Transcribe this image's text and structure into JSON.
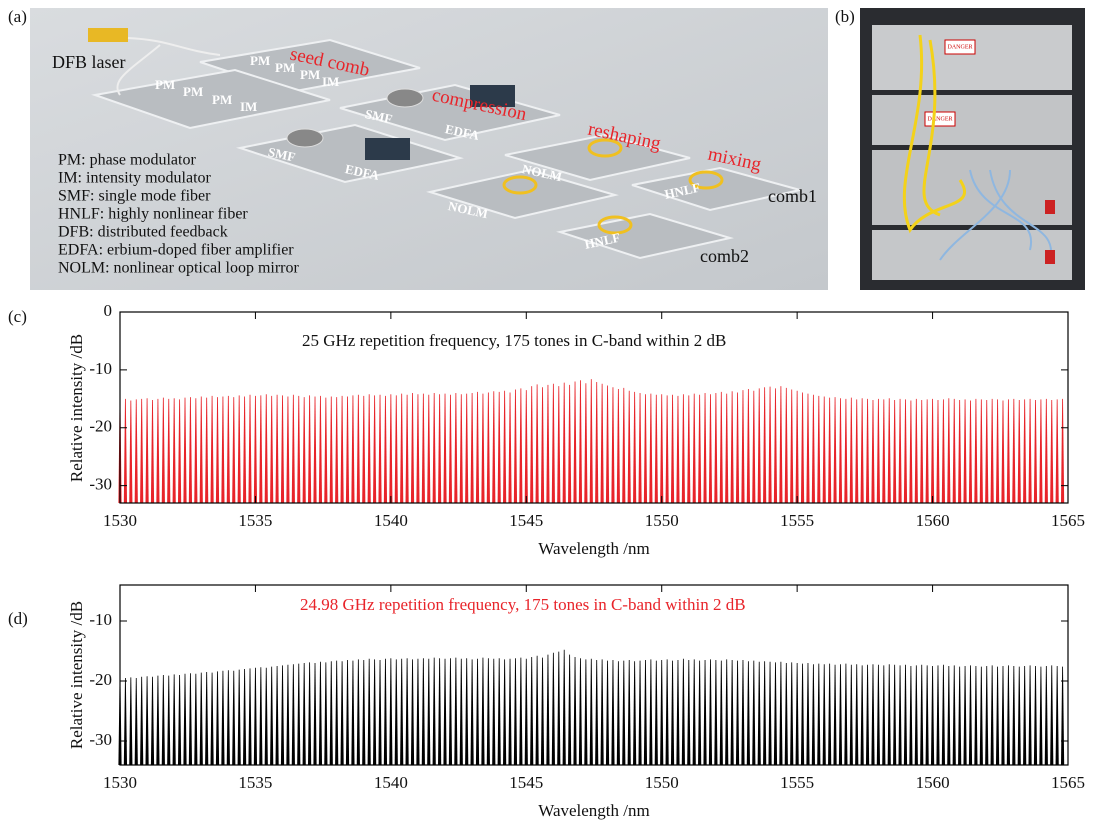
{
  "panel_labels": [
    "(a)",
    "(b)",
    "(c)",
    "(d)"
  ],
  "diagram": {
    "laser": "DFB laser",
    "stages": [
      "seed comb",
      "compression",
      "reshaping",
      "mixing"
    ],
    "modulators_1": [
      "PM",
      "PM",
      "PM",
      "IM"
    ],
    "modulators_2": [
      "PM",
      "PM",
      "PM",
      "IM"
    ],
    "components": [
      "SMF",
      "EDFA",
      "SMF",
      "EDFA",
      "NOLM",
      "NOLM",
      "HNLF",
      "HNLF"
    ],
    "outputs": [
      "comb1",
      "comb2"
    ],
    "legend": [
      "PM: phase modulator",
      "IM: intensity modulator",
      "SMF: single mode fiber",
      "HNLF: highly nonlinear fiber",
      "DFB: distributed feedback",
      "EDFA: erbium-doped fiber amplifier",
      "NOLM: nonlinear optical loop mirror"
    ]
  },
  "photo": {
    "labels": [
      "DANGER",
      "DANGER"
    ]
  },
  "chart_data": [
    {
      "type": "stem",
      "annotation": "25 GHz repetition frequency, 175 tones in C-band within 2 dB",
      "xlabel": "Wavelength /nm",
      "ylabel": "Relative intensity /dB",
      "color": "#e8242a",
      "xlim": [
        1530,
        1565
      ],
      "xticks": [
        1530,
        1535,
        1540,
        1545,
        1550,
        1555,
        1560,
        1565
      ],
      "ylim": [
        -33,
        0
      ],
      "yticks": [
        -30,
        -20,
        -10,
        0
      ],
      "x": [
        1530,
        1530.2,
        1530.4,
        1530.6,
        1530.8,
        1531,
        1531.2,
        1531.4,
        1531.6,
        1531.8,
        1532,
        1532.2,
        1532.4,
        1532.6,
        1532.8,
        1533,
        1533.2,
        1533.4,
        1533.6,
        1533.8,
        1534,
        1534.2,
        1534.4,
        1534.6,
        1534.8,
        1535,
        1535.2,
        1535.4,
        1535.6,
        1535.8,
        1536,
        1536.2,
        1536.4,
        1536.6,
        1536.8,
        1537,
        1537.2,
        1537.4,
        1537.6,
        1537.8,
        1538,
        1538.2,
        1538.4,
        1538.6,
        1538.8,
        1539,
        1539.2,
        1539.4,
        1539.6,
        1539.8,
        1540,
        1540.2,
        1540.4,
        1540.6,
        1540.8,
        1541,
        1541.2,
        1541.4,
        1541.6,
        1541.8,
        1542,
        1542.2,
        1542.4,
        1542.6,
        1542.8,
        1543,
        1543.2,
        1543.4,
        1543.6,
        1543.8,
        1544,
        1544.2,
        1544.4,
        1544.6,
        1544.8,
        1545,
        1545.2,
        1545.4,
        1545.6,
        1545.8,
        1546,
        1546.2,
        1546.4,
        1546.6,
        1546.8,
        1547,
        1547.2,
        1547.4,
        1547.6,
        1547.8,
        1548,
        1548.2,
        1548.4,
        1548.6,
        1548.8,
        1549,
        1549.2,
        1549.4,
        1549.6,
        1549.8,
        1550,
        1550.2,
        1550.4,
        1550.6,
        1550.8,
        1551,
        1551.2,
        1551.4,
        1551.6,
        1551.8,
        1552,
        1552.2,
        1552.4,
        1552.6,
        1552.8,
        1553,
        1553.2,
        1553.4,
        1553.6,
        1553.8,
        1554,
        1554.2,
        1554.4,
        1554.6,
        1554.8,
        1555,
        1555.2,
        1555.4,
        1555.6,
        1555.8,
        1556,
        1556.2,
        1556.4,
        1556.6,
        1556.8,
        1557,
        1557.2,
        1557.4,
        1557.6,
        1557.8,
        1558,
        1558.2,
        1558.4,
        1558.6,
        1558.8,
        1559,
        1559.2,
        1559.4,
        1559.6,
        1559.8,
        1560,
        1560.2,
        1560.4,
        1560.6,
        1560.8,
        1561,
        1561.2,
        1561.4,
        1561.6,
        1561.8,
        1562,
        1562.2,
        1562.4,
        1562.6,
        1562.8,
        1563,
        1563.2,
        1563.4,
        1563.6,
        1563.8,
        1564,
        1564.2,
        1564.4,
        1564.6,
        1564.8
      ],
      "values": [
        -15.2,
        -15.0,
        -15.3,
        -15.1,
        -15.0,
        -14.9,
        -15.2,
        -15.0,
        -14.8,
        -15.0,
        -14.9,
        -15.1,
        -14.8,
        -14.7,
        -14.9,
        -14.6,
        -14.8,
        -14.5,
        -14.7,
        -14.6,
        -14.5,
        -14.7,
        -14.4,
        -14.6,
        -14.3,
        -14.5,
        -14.4,
        -14.2,
        -14.5,
        -14.3,
        -14.4,
        -14.6,
        -14.3,
        -14.5,
        -14.7,
        -14.4,
        -14.6,
        -14.5,
        -14.8,
        -14.6,
        -14.7,
        -14.5,
        -14.6,
        -14.4,
        -14.3,
        -14.5,
        -14.2,
        -14.4,
        -14.3,
        -14.5,
        -14.2,
        -14.4,
        -14.1,
        -14.3,
        -14.0,
        -14.2,
        -14.1,
        -14.3,
        -14.0,
        -14.2,
        -14.1,
        -14.3,
        -14.0,
        -14.2,
        -14.1,
        -14.0,
        -13.8,
        -14.1,
        -13.9,
        -13.7,
        -13.8,
        -13.6,
        -13.9,
        -13.4,
        -13.2,
        -13.5,
        -12.8,
        -12.5,
        -13.0,
        -12.6,
        -12.4,
        -12.8,
        -12.2,
        -12.6,
        -12.0,
        -11.8,
        -12.3,
        -11.6,
        -12.1,
        -12.4,
        -12.7,
        -13.0,
        -13.3,
        -13.1,
        -13.6,
        -13.8,
        -14.0,
        -14.2,
        -14.1,
        -14.3,
        -14.2,
        -14.4,
        -14.3,
        -14.5,
        -14.2,
        -14.4,
        -14.1,
        -14.3,
        -14.0,
        -14.2,
        -14.0,
        -13.8,
        -14.1,
        -13.7,
        -13.9,
        -13.5,
        -13.3,
        -13.6,
        -13.2,
        -13.0,
        -12.9,
        -13.2,
        -12.8,
        -13.1,
        -13.4,
        -13.6,
        -13.9,
        -14.1,
        -14.3,
        -14.5,
        -14.6,
        -14.8,
        -14.7,
        -14.9,
        -15.0,
        -14.8,
        -15.1,
        -14.9,
        -15.0,
        -15.2,
        -15.0,
        -15.1,
        -14.9,
        -15.2,
        -15.0,
        -15.1,
        -15.3,
        -15.0,
        -15.2,
        -15.1,
        -15.0,
        -15.2,
        -15.1,
        -14.9,
        -15.0,
        -15.2,
        -15.1,
        -15.3,
        -15.0,
        -15.1,
        -15.2,
        -15.0,
        -15.1,
        -15.3,
        -15.1,
        -15.0,
        -15.2,
        -15.1,
        -15.0,
        -15.2,
        -15.1,
        -15.0,
        -15.2,
        -15.1,
        -15.0
      ]
    },
    {
      "type": "stem",
      "annotation": "24.98 GHz repetition frequency, 175 tones in C-band within 2 dB",
      "annotation_color": "#e8242a",
      "xlabel": "Wavelength /nm",
      "ylabel": "Relative intensity /dB",
      "color": "#000000",
      "xlim": [
        1530,
        1565
      ],
      "xticks": [
        1530,
        1535,
        1540,
        1545,
        1550,
        1555,
        1560,
        1565
      ],
      "ylim": [
        -34,
        -4
      ],
      "yticks": [
        -30,
        -20,
        -10
      ],
      "x": [
        1530,
        1530.2,
        1530.4,
        1530.6,
        1530.8,
        1531,
        1531.2,
        1531.4,
        1531.6,
        1531.8,
        1532,
        1532.2,
        1532.4,
        1532.6,
        1532.8,
        1533,
        1533.2,
        1533.4,
        1533.6,
        1533.8,
        1534,
        1534.2,
        1534.4,
        1534.6,
        1534.8,
        1535,
        1535.2,
        1535.4,
        1535.6,
        1535.8,
        1536,
        1536.2,
        1536.4,
        1536.6,
        1536.8,
        1537,
        1537.2,
        1537.4,
        1537.6,
        1537.8,
        1538,
        1538.2,
        1538.4,
        1538.6,
        1538.8,
        1539,
        1539.2,
        1539.4,
        1539.6,
        1539.8,
        1540,
        1540.2,
        1540.4,
        1540.6,
        1540.8,
        1541,
        1541.2,
        1541.4,
        1541.6,
        1541.8,
        1542,
        1542.2,
        1542.4,
        1542.6,
        1542.8,
        1543,
        1543.2,
        1543.4,
        1543.6,
        1543.8,
        1544,
        1544.2,
        1544.4,
        1544.6,
        1544.8,
        1545,
        1545.2,
        1545.4,
        1545.6,
        1545.8,
        1546,
        1546.2,
        1546.4,
        1546.6,
        1546.8,
        1547,
        1547.2,
        1547.4,
        1547.6,
        1547.8,
        1548,
        1548.2,
        1548.4,
        1548.6,
        1548.8,
        1549,
        1549.2,
        1549.4,
        1549.6,
        1549.8,
        1550,
        1550.2,
        1550.4,
        1550.6,
        1550.8,
        1551,
        1551.2,
        1551.4,
        1551.6,
        1551.8,
        1552,
        1552.2,
        1552.4,
        1552.6,
        1552.8,
        1553,
        1553.2,
        1553.4,
        1553.6,
        1553.8,
        1554,
        1554.2,
        1554.4,
        1554.6,
        1554.8,
        1555,
        1555.2,
        1555.4,
        1555.6,
        1555.8,
        1556,
        1556.2,
        1556.4,
        1556.6,
        1556.8,
        1557,
        1557.2,
        1557.4,
        1557.6,
        1557.8,
        1558,
        1558.2,
        1558.4,
        1558.6,
        1558.8,
        1559,
        1559.2,
        1559.4,
        1559.6,
        1559.8,
        1560,
        1560.2,
        1560.4,
        1560.6,
        1560.8,
        1561,
        1561.2,
        1561.4,
        1561.6,
        1561.8,
        1562,
        1562.2,
        1562.4,
        1562.6,
        1562.8,
        1563,
        1563.2,
        1563.4,
        1563.6,
        1563.8,
        1564,
        1564.2,
        1564.4,
        1564.6,
        1564.8
      ],
      "values": [
        -19.6,
        -19.5,
        -19.4,
        -19.5,
        -19.3,
        -19.2,
        -19.3,
        -19.1,
        -19.0,
        -19.1,
        -18.9,
        -19.0,
        -18.8,
        -18.7,
        -18.8,
        -18.6,
        -18.5,
        -18.6,
        -18.4,
        -18.3,
        -18.2,
        -18.3,
        -18.1,
        -18.0,
        -17.9,
        -17.8,
        -17.7,
        -17.8,
        -17.6,
        -17.5,
        -17.4,
        -17.3,
        -17.2,
        -17.1,
        -17.0,
        -16.9,
        -17.0,
        -16.8,
        -16.9,
        -16.7,
        -16.6,
        -16.7,
        -16.5,
        -16.6,
        -16.4,
        -16.5,
        -16.3,
        -16.4,
        -16.5,
        -16.3,
        -16.2,
        -16.4,
        -16.3,
        -16.2,
        -16.4,
        -16.3,
        -16.2,
        -16.3,
        -16.1,
        -16.2,
        -16.3,
        -16.2,
        -16.1,
        -16.3,
        -16.2,
        -16.4,
        -16.3,
        -16.1,
        -16.2,
        -16.3,
        -16.2,
        -16.4,
        -16.3,
        -16.2,
        -16.1,
        -16.3,
        -16.0,
        -15.8,
        -16.1,
        -15.6,
        -15.3,
        -15.1,
        -14.8,
        -15.6,
        -16.0,
        -16.2,
        -16.4,
        -16.3,
        -16.5,
        -16.4,
        -16.6,
        -16.5,
        -16.7,
        -16.6,
        -16.5,
        -16.7,
        -16.6,
        -16.5,
        -16.4,
        -16.6,
        -16.5,
        -16.4,
        -16.6,
        -16.5,
        -16.3,
        -16.5,
        -16.4,
        -16.6,
        -16.5,
        -16.4,
        -16.5,
        -16.6,
        -16.4,
        -16.5,
        -16.6,
        -16.5,
        -16.7,
        -16.6,
        -16.8,
        -16.7,
        -16.8,
        -16.9,
        -16.8,
        -17.0,
        -16.9,
        -17.0,
        -17.1,
        -17.0,
        -17.2,
        -17.1,
        -17.2,
        -17.1,
        -17.3,
        -17.2,
        -17.1,
        -17.3,
        -17.2,
        -17.4,
        -17.3,
        -17.2,
        -17.3,
        -17.4,
        -17.2,
        -17.3,
        -17.4,
        -17.3,
        -17.5,
        -17.4,
        -17.3,
        -17.4,
        -17.5,
        -17.4,
        -17.3,
        -17.5,
        -17.4,
        -17.6,
        -17.5,
        -17.4,
        -17.5,
        -17.6,
        -17.5,
        -17.4,
        -17.6,
        -17.5,
        -17.4,
        -17.5,
        -17.6,
        -17.5,
        -17.4,
        -17.5,
        -17.6,
        -17.5,
        -17.4,
        -17.5,
        -17.6
      ]
    }
  ]
}
